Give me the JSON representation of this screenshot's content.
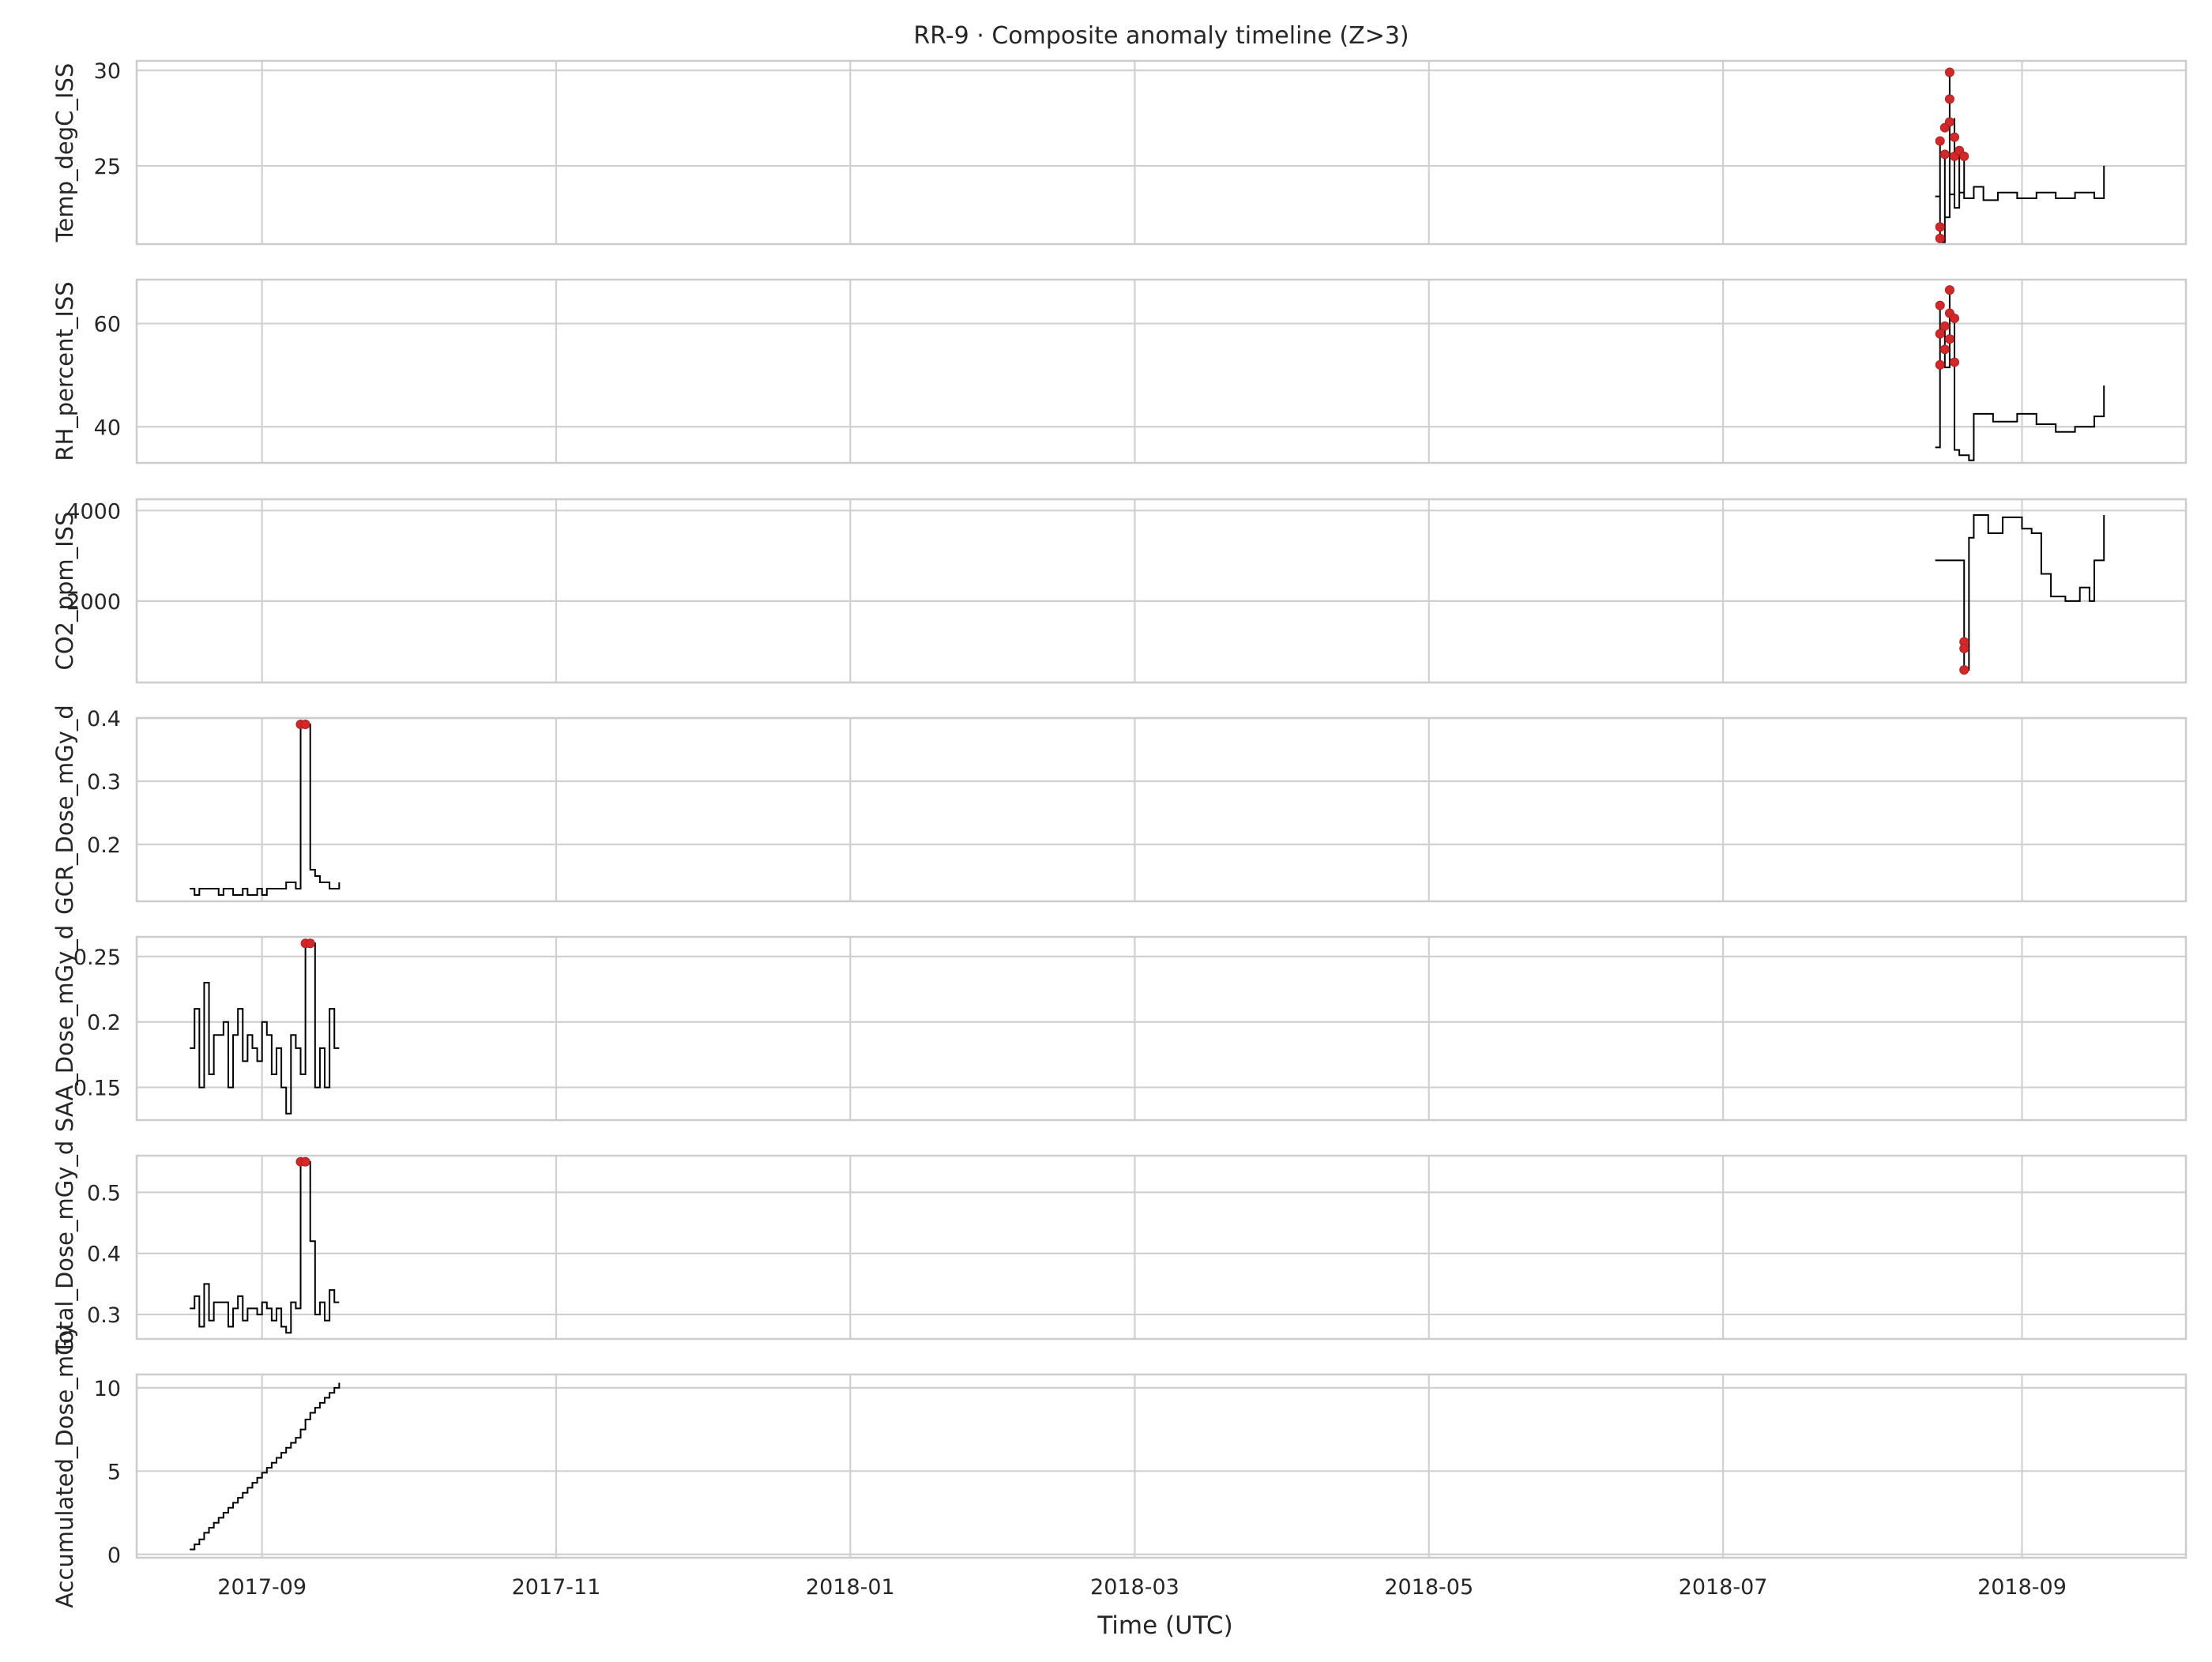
{
  "figure": {
    "title": "RR-9 · Composite anomaly timeline (Z>3)",
    "xlabel": "Time (UTC)"
  },
  "colors": {
    "line": "#000000",
    "anomaly": "#d62728",
    "grid": "#d0d0d0",
    "spine": "#cccccc",
    "text": "#262626"
  },
  "chart_data": {
    "type": "line",
    "shared_x_axis": true,
    "x_axis": {
      "label": "Time (UTC)",
      "range": [
        "2017-08-06",
        "2018-10-05"
      ],
      "ticks": [
        "2017-09-01",
        "2017-11-01",
        "2018-01-01",
        "2018-03-01",
        "2018-05-01",
        "2018-07-01",
        "2018-09-01"
      ],
      "tick_labels": [
        "2017-09",
        "2017-11",
        "2018-01",
        "2018-03",
        "2018-05",
        "2018-07",
        "2018-09"
      ]
    },
    "grid": true,
    "legend": "none",
    "panels": [
      {
        "ylabel": "Temp_degC_ISS",
        "ylim": [
          20.9,
          30.5
        ],
        "yticks": [
          25,
          30
        ],
        "series": [
          {
            "x": "2018-08-14",
            "y": 23.4
          },
          {
            "x": "2018-08-15",
            "y": 26.3
          },
          {
            "x": "2018-08-15",
            "y": 21.0
          },
          {
            "x": "2018-08-16",
            "y": 25.6
          },
          {
            "x": "2018-08-16",
            "y": 22.3
          },
          {
            "x": "2018-08-17",
            "y": 29.9
          },
          {
            "x": "2018-08-17",
            "y": 23.5
          },
          {
            "x": "2018-08-18",
            "y": 27.5
          },
          {
            "x": "2018-08-18",
            "y": 22.8
          },
          {
            "x": "2018-08-19",
            "y": 25.8
          },
          {
            "x": "2018-08-19",
            "y": 23.6
          },
          {
            "x": "2018-08-20",
            "y": 25.5
          },
          {
            "x": "2018-08-20",
            "y": 23.3
          },
          {
            "x": "2018-08-22",
            "y": 23.9
          },
          {
            "x": "2018-08-24",
            "y": 23.2
          },
          {
            "x": "2018-08-27",
            "y": 23.6
          },
          {
            "x": "2018-08-31",
            "y": 23.3
          },
          {
            "x": "2018-09-04",
            "y": 23.6
          },
          {
            "x": "2018-09-08",
            "y": 23.3
          },
          {
            "x": "2018-09-12",
            "y": 23.6
          },
          {
            "x": "2018-09-16",
            "y": 23.3
          },
          {
            "x": "2018-09-18",
            "y": 23.6
          },
          {
            "x": "2018-09-18",
            "y": 25.0
          }
        ],
        "anomalies": [
          {
            "x": "2018-08-15",
            "y": 26.3
          },
          {
            "x": "2018-08-15",
            "y": 21.2
          },
          {
            "x": "2018-08-15",
            "y": 21.8
          },
          {
            "x": "2018-08-16",
            "y": 25.6
          },
          {
            "x": "2018-08-16",
            "y": 27.0
          },
          {
            "x": "2018-08-17",
            "y": 29.9
          },
          {
            "x": "2018-08-17",
            "y": 28.5
          },
          {
            "x": "2018-08-17",
            "y": 27.3
          },
          {
            "x": "2018-08-18",
            "y": 26.5
          },
          {
            "x": "2018-08-18",
            "y": 25.5
          },
          {
            "x": "2018-08-19",
            "y": 25.8
          },
          {
            "x": "2018-08-20",
            "y": 25.5
          }
        ]
      },
      {
        "ylabel": "RH_percent_ISS",
        "ylim": [
          33,
          68.5
        ],
        "yticks": [
          40,
          60
        ],
        "series": [
          {
            "x": "2018-08-14",
            "y": 36.0
          },
          {
            "x": "2018-08-15",
            "y": 63.5
          },
          {
            "x": "2018-08-15",
            "y": 52.0
          },
          {
            "x": "2018-08-16",
            "y": 59.5
          },
          {
            "x": "2018-08-16",
            "y": 51.5
          },
          {
            "x": "2018-08-17",
            "y": 66.5
          },
          {
            "x": "2018-08-17",
            "y": 53.0
          },
          {
            "x": "2018-08-18",
            "y": 61.0
          },
          {
            "x": "2018-08-18",
            "y": 35.5
          },
          {
            "x": "2018-08-19",
            "y": 34.5
          },
          {
            "x": "2018-08-21",
            "y": 33.5
          },
          {
            "x": "2018-08-22",
            "y": 42.5
          },
          {
            "x": "2018-08-26",
            "y": 41.0
          },
          {
            "x": "2018-08-31",
            "y": 42.5
          },
          {
            "x": "2018-09-04",
            "y": 40.5
          },
          {
            "x": "2018-09-08",
            "y": 39.0
          },
          {
            "x": "2018-09-12",
            "y": 40.0
          },
          {
            "x": "2018-09-16",
            "y": 42.0
          },
          {
            "x": "2018-09-18",
            "y": 43.5
          },
          {
            "x": "2018-09-18",
            "y": 48.0
          }
        ],
        "anomalies": [
          {
            "x": "2018-08-15",
            "y": 63.5
          },
          {
            "x": "2018-08-15",
            "y": 58.0
          },
          {
            "x": "2018-08-15",
            "y": 52.0
          },
          {
            "x": "2018-08-16",
            "y": 59.5
          },
          {
            "x": "2018-08-16",
            "y": 55.0
          },
          {
            "x": "2018-08-17",
            "y": 66.5
          },
          {
            "x": "2018-08-17",
            "y": 62.0
          },
          {
            "x": "2018-08-17",
            "y": 57.0
          },
          {
            "x": "2018-08-18",
            "y": 61.0
          },
          {
            "x": "2018-08-18",
            "y": 52.5
          }
        ]
      },
      {
        "ylabel": "CO2_ppm_ISS",
        "ylim": [
          200,
          4250
        ],
        "yticks": [
          2000,
          4000
        ],
        "series": [
          {
            "x": "2018-08-14",
            "y": 2900
          },
          {
            "x": "2018-08-20",
            "y": 2900
          },
          {
            "x": "2018-08-20",
            "y": 480
          },
          {
            "x": "2018-08-21",
            "y": 3400
          },
          {
            "x": "2018-08-22",
            "y": 3900
          },
          {
            "x": "2018-08-25",
            "y": 3500
          },
          {
            "x": "2018-08-28",
            "y": 3850
          },
          {
            "x": "2018-09-01",
            "y": 3600
          },
          {
            "x": "2018-09-03",
            "y": 3500
          },
          {
            "x": "2018-09-05",
            "y": 2600
          },
          {
            "x": "2018-09-07",
            "y": 2100
          },
          {
            "x": "2018-09-10",
            "y": 2000
          },
          {
            "x": "2018-09-13",
            "y": 2300
          },
          {
            "x": "2018-09-15",
            "y": 2000
          },
          {
            "x": "2018-09-16",
            "y": 2900
          },
          {
            "x": "2018-09-18",
            "y": 3900
          },
          {
            "x": "2018-09-18",
            "y": 3200
          }
        ],
        "anomalies": [
          {
            "x": "2018-08-20",
            "y": 1100
          },
          {
            "x": "2018-08-20",
            "y": 950
          },
          {
            "x": "2018-08-20",
            "y": 480
          }
        ]
      },
      {
        "ylabel": "GCR_Dose_mGy_d",
        "ylim": [
          0.11,
          0.4
        ],
        "yticks": [
          0.2,
          0.3,
          0.4
        ],
        "series": [
          {
            "x": "2017-08-17",
            "y": 0.13
          },
          {
            "x": "2017-08-18",
            "y": 0.12
          },
          {
            "x": "2017-08-19",
            "y": 0.13
          },
          {
            "x": "2017-08-20",
            "y": 0.13
          },
          {
            "x": "2017-08-21",
            "y": 0.13
          },
          {
            "x": "2017-08-22",
            "y": 0.13
          },
          {
            "x": "2017-08-23",
            "y": 0.12
          },
          {
            "x": "2017-08-24",
            "y": 0.13
          },
          {
            "x": "2017-08-25",
            "y": 0.13
          },
          {
            "x": "2017-08-26",
            "y": 0.12
          },
          {
            "x": "2017-08-27",
            "y": 0.12
          },
          {
            "x": "2017-08-28",
            "y": 0.13
          },
          {
            "x": "2017-08-29",
            "y": 0.12
          },
          {
            "x": "2017-08-30",
            "y": 0.12
          },
          {
            "x": "2017-08-31",
            "y": 0.13
          },
          {
            "x": "2017-09-01",
            "y": 0.12
          },
          {
            "x": "2017-09-02",
            "y": 0.13
          },
          {
            "x": "2017-09-03",
            "y": 0.13
          },
          {
            "x": "2017-09-04",
            "y": 0.13
          },
          {
            "x": "2017-09-05",
            "y": 0.13
          },
          {
            "x": "2017-09-06",
            "y": 0.14
          },
          {
            "x": "2017-09-07",
            "y": 0.14
          },
          {
            "x": "2017-09-08",
            "y": 0.13
          },
          {
            "x": "2017-09-09",
            "y": 0.39
          },
          {
            "x": "2017-09-10",
            "y": 0.39
          },
          {
            "x": "2017-09-11",
            "y": 0.16
          },
          {
            "x": "2017-09-12",
            "y": 0.15
          },
          {
            "x": "2017-09-13",
            "y": 0.14
          },
          {
            "x": "2017-09-14",
            "y": 0.14
          },
          {
            "x": "2017-09-15",
            "y": 0.13
          },
          {
            "x": "2017-09-16",
            "y": 0.13
          },
          {
            "x": "2017-09-17",
            "y": 0.14
          }
        ],
        "anomalies": [
          {
            "x": "2017-09-09",
            "y": 0.39
          },
          {
            "x": "2017-09-10",
            "y": 0.39
          }
        ]
      },
      {
        "ylabel": "SAA_Dose_mGy_d",
        "ylim": [
          0.125,
          0.265
        ],
        "yticks": [
          0.15,
          0.2,
          0.25
        ],
        "series": [
          {
            "x": "2017-08-17",
            "y": 0.18
          },
          {
            "x": "2017-08-18",
            "y": 0.21
          },
          {
            "x": "2017-08-19",
            "y": 0.15
          },
          {
            "x": "2017-08-20",
            "y": 0.23
          },
          {
            "x": "2017-08-21",
            "y": 0.16
          },
          {
            "x": "2017-08-22",
            "y": 0.19
          },
          {
            "x": "2017-08-23",
            "y": 0.19
          },
          {
            "x": "2017-08-24",
            "y": 0.2
          },
          {
            "x": "2017-08-25",
            "y": 0.15
          },
          {
            "x": "2017-08-26",
            "y": 0.19
          },
          {
            "x": "2017-08-27",
            "y": 0.21
          },
          {
            "x": "2017-08-28",
            "y": 0.17
          },
          {
            "x": "2017-08-29",
            "y": 0.19
          },
          {
            "x": "2017-08-30",
            "y": 0.18
          },
          {
            "x": "2017-08-31",
            "y": 0.17
          },
          {
            "x": "2017-09-01",
            "y": 0.2
          },
          {
            "x": "2017-09-02",
            "y": 0.19
          },
          {
            "x": "2017-09-03",
            "y": 0.16
          },
          {
            "x": "2017-09-04",
            "y": 0.18
          },
          {
            "x": "2017-09-05",
            "y": 0.15
          },
          {
            "x": "2017-09-06",
            "y": 0.13
          },
          {
            "x": "2017-09-07",
            "y": 0.19
          },
          {
            "x": "2017-09-08",
            "y": 0.18
          },
          {
            "x": "2017-09-09",
            "y": 0.16
          },
          {
            "x": "2017-09-10",
            "y": 0.26
          },
          {
            "x": "2017-09-11",
            "y": 0.26
          },
          {
            "x": "2017-09-12",
            "y": 0.15
          },
          {
            "x": "2017-09-13",
            "y": 0.18
          },
          {
            "x": "2017-09-14",
            "y": 0.15
          },
          {
            "x": "2017-09-15",
            "y": 0.21
          },
          {
            "x": "2017-09-16",
            "y": 0.18
          },
          {
            "x": "2017-09-17",
            "y": 0.18
          }
        ],
        "anomalies": [
          {
            "x": "2017-09-10",
            "y": 0.26
          },
          {
            "x": "2017-09-11",
            "y": 0.26
          }
        ]
      },
      {
        "ylabel": "Total_Dose_mGy_d",
        "ylim": [
          0.26,
          0.56
        ],
        "yticks": [
          0.3,
          0.4,
          0.5
        ],
        "series": [
          {
            "x": "2017-08-17",
            "y": 0.31
          },
          {
            "x": "2017-08-18",
            "y": 0.33
          },
          {
            "x": "2017-08-19",
            "y": 0.28
          },
          {
            "x": "2017-08-20",
            "y": 0.35
          },
          {
            "x": "2017-08-21",
            "y": 0.29
          },
          {
            "x": "2017-08-22",
            "y": 0.32
          },
          {
            "x": "2017-08-23",
            "y": 0.32
          },
          {
            "x": "2017-08-24",
            "y": 0.32
          },
          {
            "x": "2017-08-25",
            "y": 0.28
          },
          {
            "x": "2017-08-26",
            "y": 0.31
          },
          {
            "x": "2017-08-27",
            "y": 0.33
          },
          {
            "x": "2017-08-28",
            "y": 0.29
          },
          {
            "x": "2017-08-29",
            "y": 0.31
          },
          {
            "x": "2017-08-30",
            "y": 0.31
          },
          {
            "x": "2017-08-31",
            "y": 0.3
          },
          {
            "x": "2017-09-01",
            "y": 0.32
          },
          {
            "x": "2017-09-02",
            "y": 0.31
          },
          {
            "x": "2017-09-03",
            "y": 0.29
          },
          {
            "x": "2017-09-04",
            "y": 0.31
          },
          {
            "x": "2017-09-05",
            "y": 0.28
          },
          {
            "x": "2017-09-06",
            "y": 0.27
          },
          {
            "x": "2017-09-07",
            "y": 0.32
          },
          {
            "x": "2017-09-08",
            "y": 0.31
          },
          {
            "x": "2017-09-09",
            "y": 0.55
          },
          {
            "x": "2017-09-10",
            "y": 0.55
          },
          {
            "x": "2017-09-11",
            "y": 0.42
          },
          {
            "x": "2017-09-12",
            "y": 0.3
          },
          {
            "x": "2017-09-13",
            "y": 0.32
          },
          {
            "x": "2017-09-14",
            "y": 0.29
          },
          {
            "x": "2017-09-15",
            "y": 0.34
          },
          {
            "x": "2017-09-16",
            "y": 0.32
          },
          {
            "x": "2017-09-17",
            "y": 0.32
          }
        ],
        "anomalies": [
          {
            "x": "2017-09-09",
            "y": 0.55
          },
          {
            "x": "2017-09-10",
            "y": 0.55
          }
        ]
      },
      {
        "ylabel": "Accumulated_Dose_mGy",
        "ylim": [
          -0.2,
          10.8
        ],
        "yticks": [
          0,
          5,
          10
        ],
        "series": [
          {
            "x": "2017-08-17",
            "y": 0.3
          },
          {
            "x": "2017-08-18",
            "y": 0.6
          },
          {
            "x": "2017-08-19",
            "y": 0.9
          },
          {
            "x": "2017-08-20",
            "y": 1.3
          },
          {
            "x": "2017-08-21",
            "y": 1.6
          },
          {
            "x": "2017-08-22",
            "y": 1.9
          },
          {
            "x": "2017-08-23",
            "y": 2.2
          },
          {
            "x": "2017-08-24",
            "y": 2.5
          },
          {
            "x": "2017-08-25",
            "y": 2.8
          },
          {
            "x": "2017-08-26",
            "y": 3.1
          },
          {
            "x": "2017-08-27",
            "y": 3.4
          },
          {
            "x": "2017-08-28",
            "y": 3.7
          },
          {
            "x": "2017-08-29",
            "y": 4.0
          },
          {
            "x": "2017-08-30",
            "y": 4.3
          },
          {
            "x": "2017-08-31",
            "y": 4.6
          },
          {
            "x": "2017-09-01",
            "y": 4.9
          },
          {
            "x": "2017-09-02",
            "y": 5.2
          },
          {
            "x": "2017-09-03",
            "y": 5.5
          },
          {
            "x": "2017-09-04",
            "y": 5.8
          },
          {
            "x": "2017-09-05",
            "y": 6.1
          },
          {
            "x": "2017-09-06",
            "y": 6.4
          },
          {
            "x": "2017-09-07",
            "y": 6.7
          },
          {
            "x": "2017-09-08",
            "y": 7.0
          },
          {
            "x": "2017-09-09",
            "y": 7.5
          },
          {
            "x": "2017-09-10",
            "y": 8.1
          },
          {
            "x": "2017-09-11",
            "y": 8.5
          },
          {
            "x": "2017-09-12",
            "y": 8.8
          },
          {
            "x": "2017-09-13",
            "y": 9.1
          },
          {
            "x": "2017-09-14",
            "y": 9.4
          },
          {
            "x": "2017-09-15",
            "y": 9.7
          },
          {
            "x": "2017-09-16",
            "y": 10.0
          },
          {
            "x": "2017-09-17",
            "y": 10.3
          }
        ],
        "anomalies": []
      }
    ]
  }
}
